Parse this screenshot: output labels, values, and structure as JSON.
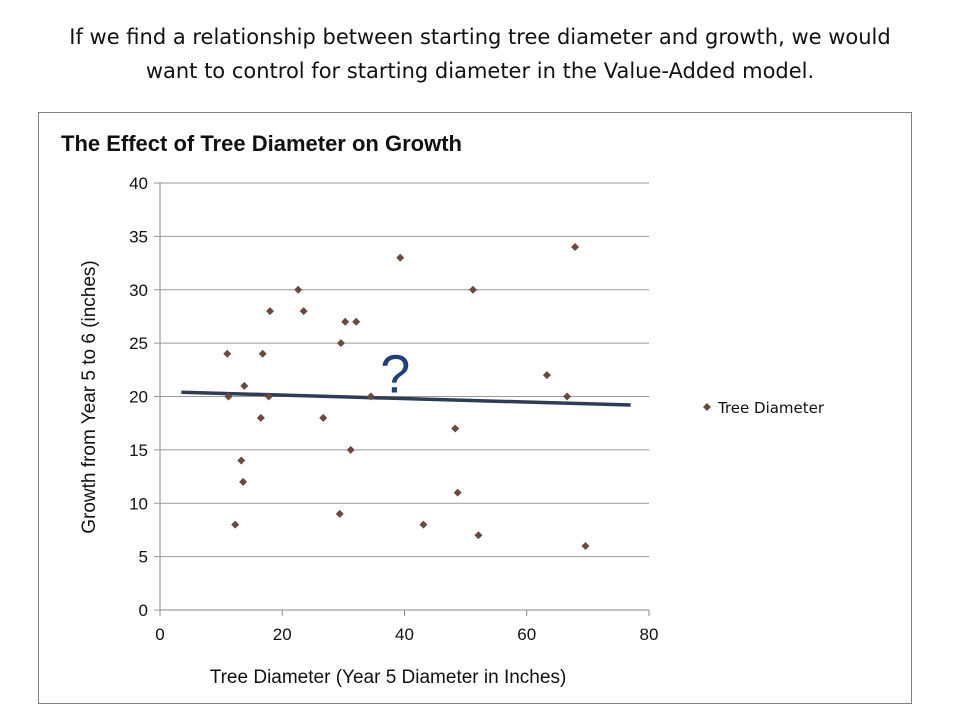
{
  "headline": {
    "line1": "If we find a relationship between starting tree diameter and growth, we would",
    "line2": "want to control for starting diameter in the Value-Added model."
  },
  "chart_data": {
    "type": "scatter",
    "title": "The Effect of Tree Diameter on Growth",
    "xlabel": "Tree Diameter (Year 5 Diameter in Inches)",
    "ylabel": "Growth from Year 5 to 6 (inches)",
    "xlim": [
      0,
      80
    ],
    "ylim": [
      0,
      40
    ],
    "xticks": [
      0,
      20,
      40,
      60,
      80
    ],
    "yticks": [
      0,
      5,
      10,
      15,
      20,
      25,
      30,
      35,
      40
    ],
    "grid": "horizontal",
    "legend_position": "right",
    "series": [
      {
        "name": "Tree Diameter",
        "color": "#6b4a3e",
        "marker": "diamond",
        "x": [
          11,
          11.2,
          12.3,
          13.3,
          13.6,
          13.8,
          16.5,
          16.8,
          17.8,
          18,
          22.6,
          23.5,
          26.7,
          29.4,
          29.6,
          30.3,
          31.2,
          32.1,
          34.5,
          39.3,
          43.1,
          48.3,
          48.7,
          51.2,
          52.1,
          63.3,
          66.6,
          67.9,
          69.6
        ],
        "y": [
          24,
          20,
          8,
          14,
          12,
          21,
          18,
          24,
          20,
          28,
          30,
          28,
          18,
          9,
          25,
          27,
          15,
          27,
          20,
          33,
          8,
          17,
          11,
          30,
          7,
          22,
          20,
          34,
          6
        ]
      }
    ],
    "trendline": {
      "type": "linear",
      "color": "#2e3d55",
      "x": [
        3.5,
        77
      ],
      "y": [
        20.4,
        19.2
      ]
    },
    "annotations": [
      {
        "text": "?",
        "x": 38.5,
        "y": 23
      }
    ]
  }
}
